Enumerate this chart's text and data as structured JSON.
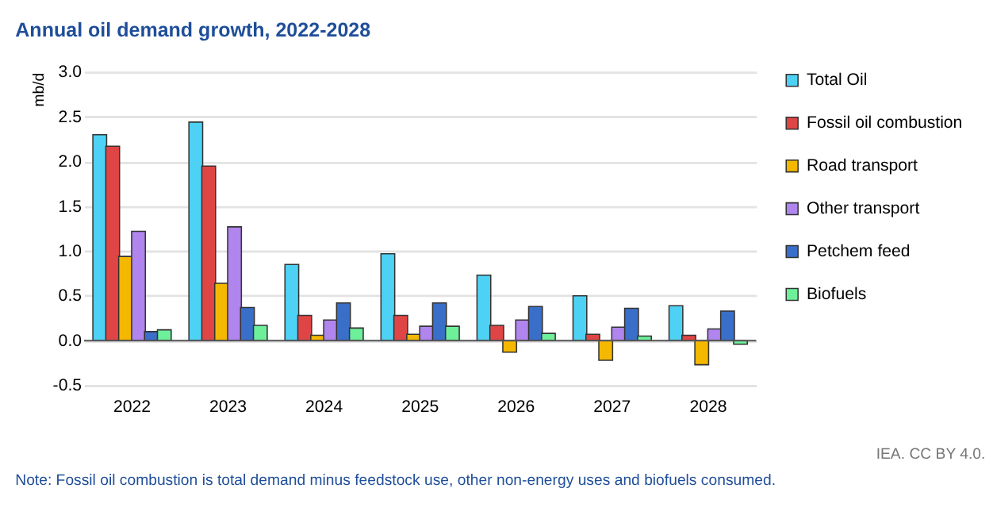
{
  "chart_data": {
    "type": "bar",
    "title": "Annual oil demand growth, 2022-2028",
    "ylabel": "mb/d",
    "categories": [
      "2022",
      "2023",
      "2024",
      "2025",
      "2026",
      "2027",
      "2028"
    ],
    "series": [
      {
        "name": "Total Oil",
        "color": "#4dd2f5",
        "values": [
          2.3,
          2.44,
          0.85,
          0.97,
          0.73,
          0.5,
          0.39
        ]
      },
      {
        "name": "Fossil oil combustion",
        "color": "#e04545",
        "values": [
          2.17,
          1.95,
          0.28,
          0.28,
          0.17,
          0.07,
          0.06
        ]
      },
      {
        "name": "Road transport",
        "color": "#f5b800",
        "values": [
          0.94,
          0.64,
          0.06,
          0.07,
          -0.13,
          -0.22,
          -0.27
        ]
      },
      {
        "name": "Other transport",
        "color": "#b085ee",
        "values": [
          1.22,
          1.27,
          0.23,
          0.16,
          0.23,
          0.15,
          0.13
        ]
      },
      {
        "name": "Petchem feed",
        "color": "#3a6fc9",
        "values": [
          0.1,
          0.37,
          0.42,
          0.42,
          0.38,
          0.36,
          0.33
        ]
      },
      {
        "name": "Biofuels",
        "color": "#6ef09a",
        "values": [
          0.12,
          0.17,
          0.14,
          0.16,
          0.08,
          0.05,
          -0.04
        ]
      }
    ],
    "ylim": [
      -0.5,
      3.0
    ],
    "yticks": [
      {
        "value": -0.5,
        "label": "-0.5"
      },
      {
        "value": 0,
        "label": "0.0"
      },
      {
        "value": 0.5,
        "label": "0.5"
      },
      {
        "value": 1,
        "label": "1.0"
      },
      {
        "value": 1.5,
        "label": "1.5"
      },
      {
        "value": 2,
        "label": "2.0"
      },
      {
        "value": 2.5,
        "label": "2.5"
      },
      {
        "value": 3,
        "label": "3.0"
      }
    ],
    "grid": "y",
    "legend": "right",
    "annotations": [
      "IEA. CC BY 4.0.",
      "Note: Fossil oil combustion is total demand minus feedstock use, other non-energy uses and biofuels consumed."
    ]
  }
}
